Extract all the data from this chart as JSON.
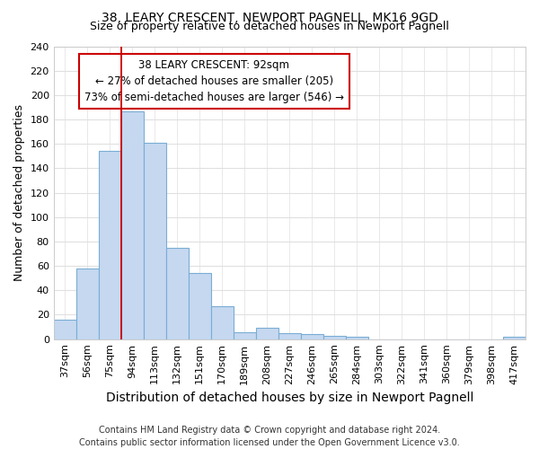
{
  "title_line1": "38, LEARY CRESCENT, NEWPORT PAGNELL, MK16 9GD",
  "title_line2": "Size of property relative to detached houses in Newport Pagnell",
  "xlabel": "Distribution of detached houses by size in Newport Pagnell",
  "ylabel": "Number of detached properties",
  "bar_color": "#c5d8f0",
  "bar_edge_color": "#7aadd4",
  "categories": [
    "37sqm",
    "56sqm",
    "75sqm",
    "94sqm",
    "113sqm",
    "132sqm",
    "151sqm",
    "170sqm",
    "189sqm",
    "208sqm",
    "227sqm",
    "246sqm",
    "265sqm",
    "284sqm",
    "303sqm",
    "322sqm",
    "341sqm",
    "360sqm",
    "379sqm",
    "398sqm",
    "417sqm"
  ],
  "values": [
    16,
    58,
    154,
    187,
    161,
    75,
    54,
    27,
    6,
    9,
    5,
    4,
    3,
    2,
    0,
    0,
    0,
    0,
    0,
    0,
    2
  ],
  "ylim": [
    0,
    240
  ],
  "yticks": [
    0,
    20,
    40,
    60,
    80,
    100,
    120,
    140,
    160,
    180,
    200,
    220,
    240
  ],
  "annotation_line1": "38 LEARY CRESCENT: 92sqm",
  "annotation_line2": "← 27% of detached houses are smaller (205)",
  "annotation_line3": "73% of semi-detached houses are larger (546) →",
  "vline_index": 3,
  "footer_line1": "Contains HM Land Registry data © Crown copyright and database right 2024.",
  "footer_line2": "Contains public sector information licensed under the Open Government Licence v3.0.",
  "background_color": "#ffffff",
  "grid_color": "#e0e0e0",
  "title1_fontsize": 10,
  "title2_fontsize": 9,
  "axis_label_fontsize": 9,
  "tick_fontsize": 8,
  "footer_fontsize": 7
}
